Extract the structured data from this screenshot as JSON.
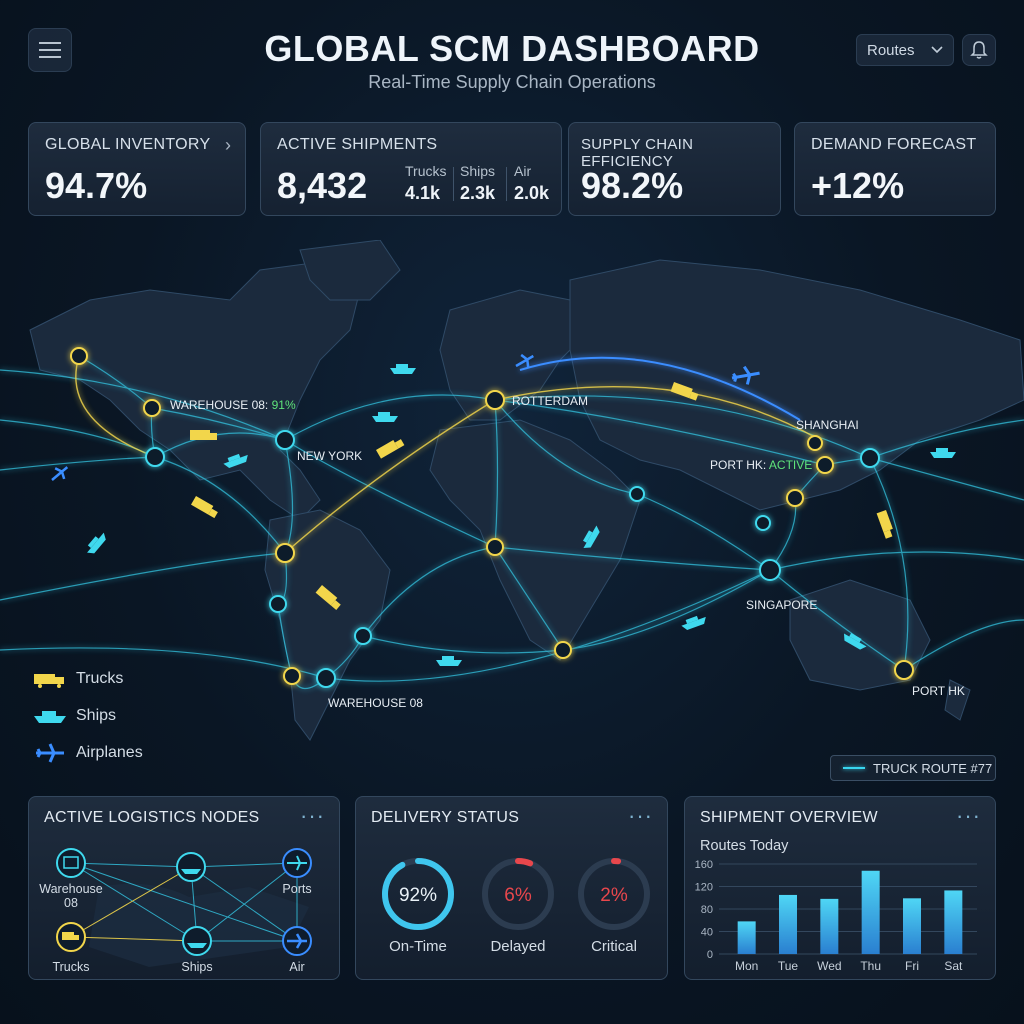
{
  "header": {
    "title": "GLOBAL SCM DASHBOARD",
    "subtitle": "Real-Time Supply Chain Operations",
    "routes_select": "Routes"
  },
  "kpis": {
    "inventory": {
      "label": "GLOBAL INVENTORY",
      "value": "94.7%"
    },
    "shipments": {
      "label": "ACTIVE SHIPMENTS",
      "value": "8,432",
      "breakdown": [
        {
          "label": "Trucks",
          "value": "4.1k"
        },
        {
          "label": "Ships",
          "value": "2.3k"
        },
        {
          "label": "Air",
          "value": "2.0k"
        }
      ]
    },
    "efficiency": {
      "label": "SUPPLY CHAIN EFFICIENCY",
      "value": "98.2%"
    },
    "forecast": {
      "label": "DEMAND FORECAST",
      "value": "+12%"
    }
  },
  "map": {
    "labels": {
      "warehouse_top": "WAREHOUSE 08:",
      "warehouse_top_pct": "91%",
      "new_york": "NEW YORK",
      "rotterdam": "ROTTERDAM",
      "shanghai": "SHANGHAI",
      "port_hk_active": "PORT HK:",
      "port_hk_active_status": "ACTIVE",
      "singapore": "SINGAPORE",
      "port_hk": "PORT HK",
      "warehouse_bottom": "WAREHOUSE 08"
    },
    "colors": {
      "truck": "#f2d64b",
      "ship": "#3fd9ee",
      "air": "#3a8dff",
      "route": "#34c9e6"
    }
  },
  "legend": {
    "trucks": "Trucks",
    "ships": "Ships",
    "airplanes": "Airplanes"
  },
  "route_badge": "TRUCK ROUTE #77",
  "panels": {
    "nodes": {
      "title": "ACTIVE LOGISTICS NODES",
      "nodes": {
        "warehouse": "Warehouse 08",
        "ports": "Ports",
        "trucks": "Trucks",
        "ships": "Ships",
        "air": "Air"
      }
    },
    "delivery": {
      "title": "DELIVERY STATUS",
      "items": [
        {
          "label": "On-Time",
          "value": "92%",
          "fraction": 0.92,
          "color": "#3fc6ee"
        },
        {
          "label": "Delayed",
          "value": "6%",
          "fraction": 0.06,
          "color": "#e8474c"
        },
        {
          "label": "Critical",
          "value": "2%",
          "fraction": 0.02,
          "color": "#e8474c"
        }
      ]
    },
    "overview": {
      "title": "SHIPMENT OVERVIEW",
      "subtitle": "Routes Today"
    }
  },
  "chart_data": {
    "type": "bar",
    "title": "",
    "ylabel": "",
    "xlabel": "",
    "categories": [
      "Mon",
      "Tue",
      "Wed",
      "Thu",
      "Fri",
      "Sat"
    ],
    "values": [
      58,
      105,
      98,
      148,
      99,
      113
    ],
    "ylim": [
      0,
      160
    ],
    "yticks": [
      "160",
      "120",
      "80",
      "40",
      "0"
    ],
    "grid": true
  }
}
